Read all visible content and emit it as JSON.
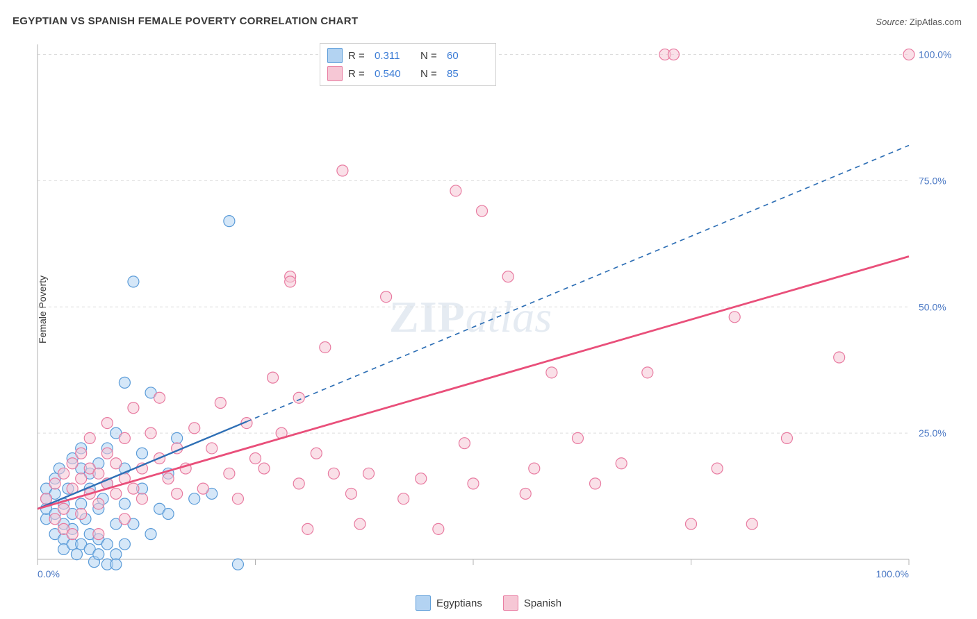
{
  "title": "EGYPTIAN VS SPANISH FEMALE POVERTY CORRELATION CHART",
  "source_label": "Source:",
  "source_value": "ZipAtlas.com",
  "ylabel": "Female Poverty",
  "watermark_zip": "ZIP",
  "watermark_atlas": "atlas",
  "chart": {
    "type": "scatter",
    "xlim": [
      0,
      100
    ],
    "ylim": [
      0,
      102
    ],
    "xtick_step": 25,
    "ytick_step": 25,
    "xtick_labels": {
      "0": "0.0%",
      "100": "100.0%"
    },
    "ytick_labels": {
      "25": "25.0%",
      "50": "50.0%",
      "75": "75.0%",
      "100": "100.0%"
    },
    "axis_label_color": "#4a78c4",
    "grid_color": "#dcdcdc",
    "background_color": "#ffffff",
    "marker_radius": 8,
    "marker_stroke_width": 1.2,
    "series": [
      {
        "name": "Egyptians",
        "fill": "#b3d3f2",
        "stroke": "#5a9bd8",
        "fill_opacity": 0.55,
        "r_value": "0.311",
        "n_value": "60",
        "trend": {
          "x1": 0,
          "y1": 10,
          "x2": 100,
          "y2": 82,
          "solid_until_x": 24,
          "color": "#2e6fb5",
          "width": 2.4,
          "dash": "7 6"
        },
        "points": [
          [
            1,
            12
          ],
          [
            1,
            14
          ],
          [
            1,
            8
          ],
          [
            1,
            10
          ],
          [
            2,
            13
          ],
          [
            2,
            9
          ],
          [
            2,
            5
          ],
          [
            2,
            16
          ],
          [
            2.5,
            18
          ],
          [
            3,
            7
          ],
          [
            3,
            11
          ],
          [
            3,
            4
          ],
          [
            3,
            2
          ],
          [
            3.5,
            14
          ],
          [
            4,
            3
          ],
          [
            4,
            20
          ],
          [
            4,
            9
          ],
          [
            4,
            6
          ],
          [
            4.5,
            1
          ],
          [
            5,
            11
          ],
          [
            5,
            18
          ],
          [
            5,
            22
          ],
          [
            5,
            3
          ],
          [
            5.5,
            8
          ],
          [
            6,
            14
          ],
          [
            6,
            5
          ],
          [
            6,
            2
          ],
          [
            6,
            17
          ],
          [
            6.5,
            -0.5
          ],
          [
            7,
            1
          ],
          [
            7,
            10
          ],
          [
            7,
            19
          ],
          [
            7,
            4
          ],
          [
            7.5,
            12
          ],
          [
            8,
            -1
          ],
          [
            8,
            3
          ],
          [
            8,
            15
          ],
          [
            8,
            22
          ],
          [
            9,
            1
          ],
          [
            9,
            7
          ],
          [
            9,
            -1
          ],
          [
            9,
            25
          ],
          [
            10,
            11
          ],
          [
            10,
            3
          ],
          [
            10,
            35
          ],
          [
            10,
            18
          ],
          [
            11,
            55
          ],
          [
            11,
            7
          ],
          [
            12,
            14
          ],
          [
            12,
            21
          ],
          [
            13,
            5
          ],
          [
            13,
            33
          ],
          [
            14,
            10
          ],
          [
            15,
            17
          ],
          [
            15,
            9
          ],
          [
            16,
            24
          ],
          [
            18,
            12
          ],
          [
            20,
            13
          ],
          [
            22,
            67
          ],
          [
            23,
            -1
          ]
        ]
      },
      {
        "name": "Spanish",
        "fill": "#f6c7d5",
        "stroke": "#e87aa0",
        "fill_opacity": 0.55,
        "r_value": "0.540",
        "n_value": "85",
        "trend": {
          "x1": 0,
          "y1": 10,
          "x2": 100,
          "y2": 60,
          "color": "#e94f7a",
          "width": 2.8
        },
        "points": [
          [
            1,
            12
          ],
          [
            2,
            15
          ],
          [
            2,
            8
          ],
          [
            3,
            17
          ],
          [
            3,
            10
          ],
          [
            3,
            6
          ],
          [
            4,
            14
          ],
          [
            4,
            19
          ],
          [
            4,
            5
          ],
          [
            5,
            16
          ],
          [
            5,
            21
          ],
          [
            5,
            9
          ],
          [
            6,
            13
          ],
          [
            6,
            18
          ],
          [
            6,
            24
          ],
          [
            7,
            11
          ],
          [
            7,
            17
          ],
          [
            7,
            5
          ],
          [
            8,
            15
          ],
          [
            8,
            21
          ],
          [
            8,
            27
          ],
          [
            9,
            13
          ],
          [
            9,
            19
          ],
          [
            10,
            16
          ],
          [
            10,
            24
          ],
          [
            10,
            8
          ],
          [
            11,
            14
          ],
          [
            11,
            30
          ],
          [
            12,
            18
          ],
          [
            12,
            12
          ],
          [
            13,
            25
          ],
          [
            14,
            20
          ],
          [
            14,
            32
          ],
          [
            15,
            16
          ],
          [
            16,
            22
          ],
          [
            16,
            13
          ],
          [
            17,
            18
          ],
          [
            18,
            26
          ],
          [
            19,
            14
          ],
          [
            20,
            22
          ],
          [
            21,
            31
          ],
          [
            22,
            17
          ],
          [
            23,
            12
          ],
          [
            24,
            27
          ],
          [
            25,
            20
          ],
          [
            26,
            18
          ],
          [
            27,
            36
          ],
          [
            28,
            25
          ],
          [
            29,
            56
          ],
          [
            29,
            55
          ],
          [
            30,
            15
          ],
          [
            30,
            32
          ],
          [
            31,
            6
          ],
          [
            32,
            21
          ],
          [
            33,
            42
          ],
          [
            34,
            17
          ],
          [
            35,
            77
          ],
          [
            36,
            13
          ],
          [
            37,
            7
          ],
          [
            38,
            17
          ],
          [
            40,
            52
          ],
          [
            42,
            12
          ],
          [
            44,
            16
          ],
          [
            46,
            6
          ],
          [
            48,
            73
          ],
          [
            49,
            23
          ],
          [
            50,
            15
          ],
          [
            51,
            69
          ],
          [
            54,
            56
          ],
          [
            56,
            13
          ],
          [
            57,
            18
          ],
          [
            59,
            37
          ],
          [
            62,
            24
          ],
          [
            64,
            15
          ],
          [
            67,
            19
          ],
          [
            70,
            37
          ],
          [
            72,
            100
          ],
          [
            73,
            100
          ],
          [
            75,
            7
          ],
          [
            78,
            18
          ],
          [
            80,
            48
          ],
          [
            82,
            7
          ],
          [
            86,
            24
          ],
          [
            92,
            40
          ],
          [
            100,
            100
          ]
        ]
      }
    ]
  },
  "stats_legend": {
    "r_label": "R  =",
    "n_label": "N  =",
    "value_color": "#3a7bd5"
  },
  "bottom_legend": {
    "items": [
      "Egyptians",
      "Spanish"
    ]
  }
}
